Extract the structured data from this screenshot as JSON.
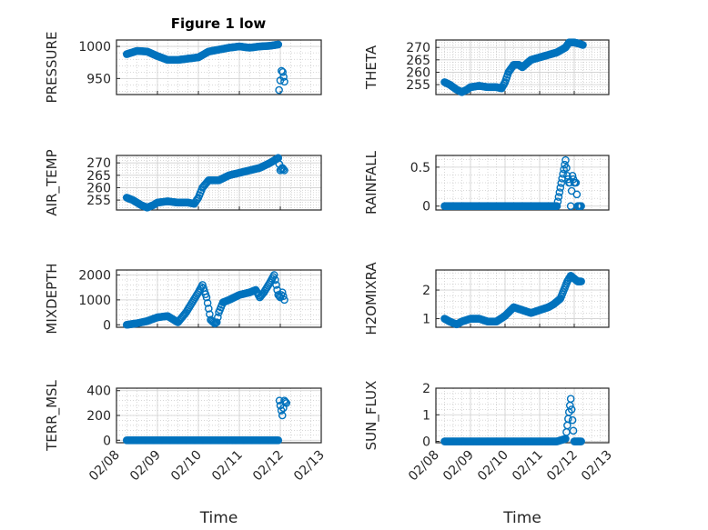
{
  "figure": {
    "title": "Figure 1 low",
    "background": "#ffffff"
  },
  "colors": {
    "marker": "#0072bd",
    "axis": "#262626",
    "grid": "#b0b0b0"
  },
  "chart_data": [
    {
      "type": "scatter",
      "ylabel": "PRESSURE",
      "ylim": [
        925,
        1010
      ],
      "yticks": [
        "950",
        "1000"
      ],
      "ytick_values": [
        950,
        1000
      ],
      "x_domain": [
        "02/08",
        "02/13"
      ],
      "grid": true,
      "marker": "circle-open",
      "series": [
        {
          "x": [
            0.25,
            0.5,
            0.75,
            1.0,
            1.25,
            1.5,
            1.75,
            2.0,
            2.25,
            2.5,
            2.75,
            3.0,
            3.25,
            3.5,
            3.75,
            3.95,
            3.97,
            4.03,
            4.06,
            4.1
          ],
          "y": [
            988,
            993,
            992,
            985,
            979,
            979,
            981,
            983,
            992,
            995,
            998,
            1000,
            998,
            1000,
            1001,
            1003,
            932,
            962,
            960,
            945
          ]
        }
      ]
    },
    {
      "type": "scatter",
      "ylabel": "THETA",
      "ylim": [
        251,
        273
      ],
      "yticks": [
        "255",
        "260",
        "265",
        "270"
      ],
      "ytick_values": [
        255,
        260,
        265,
        270
      ],
      "x_domain": [
        "02/08",
        "02/13"
      ],
      "grid": true,
      "marker": "circle-open",
      "series": [
        {
          "x": [
            0.25,
            0.4,
            0.6,
            0.75,
            0.9,
            1.0,
            1.25,
            1.5,
            1.75,
            1.9,
            2.0,
            2.1,
            2.25,
            2.4,
            2.5,
            2.75,
            3.0,
            3.25,
            3.5,
            3.75,
            3.85,
            4.0,
            4.15,
            4.25
          ],
          "y": [
            256,
            255,
            253,
            252,
            253,
            254,
            254.5,
            254,
            254,
            253.5,
            256,
            260,
            263,
            263,
            262,
            265,
            266,
            267,
            268,
            270,
            272,
            272,
            271.5,
            271
          ]
        }
      ]
    },
    {
      "type": "scatter",
      "ylabel": "AIR_TEMP",
      "ylim": [
        251,
        273
      ],
      "yticks": [
        "255",
        "260",
        "265",
        "270"
      ],
      "ytick_values": [
        255,
        260,
        265,
        270
      ],
      "x_domain": [
        "02/08",
        "02/13"
      ],
      "grid": true,
      "marker": "circle-open",
      "series": [
        {
          "x": [
            0.25,
            0.4,
            0.6,
            0.75,
            0.9,
            1.0,
            1.25,
            1.5,
            1.75,
            1.9,
            2.0,
            2.1,
            2.25,
            2.4,
            2.5,
            2.75,
            3.0,
            3.25,
            3.5,
            3.75,
            3.85,
            3.95,
            4.0,
            4.05,
            4.1
          ],
          "y": [
            256,
            255,
            253,
            252,
            253,
            254,
            254.5,
            254,
            254,
            253.5,
            256,
            260,
            263,
            263,
            263,
            265,
            266,
            267,
            268,
            270,
            271,
            272,
            267,
            268,
            267
          ]
        }
      ]
    },
    {
      "type": "scatter",
      "ylabel": "RAINFALL",
      "ylim": [
        -0.05,
        0.65
      ],
      "yticks": [
        "0",
        "0.5"
      ],
      "ytick_values": [
        0,
        0.5
      ],
      "x_domain": [
        "02/08",
        "02/13"
      ],
      "grid": true,
      "marker": "circle-open",
      "series": [
        {
          "x": [
            0.25,
            0.5,
            0.75,
            1.0,
            1.25,
            1.5,
            1.75,
            2.0,
            2.25,
            2.5,
            2.75,
            3.0,
            3.25,
            3.5,
            3.75,
            3.8,
            3.85,
            3.87,
            3.9,
            3.95,
            4.0,
            4.05,
            4.1,
            4.2
          ],
          "y": [
            0,
            0,
            0,
            0,
            0,
            0,
            0,
            0,
            0,
            0,
            0,
            0,
            0,
            0,
            0.59,
            0.39,
            0.3,
            0.3,
            0,
            0.39,
            0.3,
            0.3,
            0,
            0
          ]
        }
      ]
    },
    {
      "type": "scatter",
      "ylabel": "MIXDEPTH",
      "ylim": [
        -100,
        2200
      ],
      "yticks": [
        "0",
        "1000",
        "2000"
      ],
      "ytick_values": [
        0,
        1000,
        2000
      ],
      "x_domain": [
        "02/08",
        "02/13"
      ],
      "grid": true,
      "marker": "circle-open",
      "series": [
        {
          "x": [
            0.25,
            0.5,
            0.75,
            1.0,
            1.25,
            1.5,
            1.7,
            1.85,
            2.0,
            2.1,
            2.2,
            2.3,
            2.4,
            2.45,
            2.5,
            2.6,
            2.75,
            3.0,
            3.25,
            3.4,
            3.5,
            3.6,
            3.75,
            3.85,
            3.95,
            4.0,
            4.05,
            4.1
          ],
          "y": [
            0,
            60,
            150,
            300,
            350,
            100,
            500,
            900,
            1300,
            1600,
            1100,
            200,
            50,
            100,
            500,
            900,
            1000,
            1200,
            1300,
            1400,
            1100,
            1300,
            1700,
            2000,
            1200,
            1100,
            1300,
            1000
          ]
        }
      ]
    },
    {
      "type": "scatter",
      "ylabel": "H2OMIXRA",
      "ylim": [
        0.7,
        2.7
      ],
      "yticks": [
        "1",
        "2"
      ],
      "ytick_values": [
        1,
        2
      ],
      "x_domain": [
        "02/08",
        "02/13"
      ],
      "grid": true,
      "marker": "circle-open",
      "series": [
        {
          "x": [
            0.25,
            0.4,
            0.6,
            0.75,
            1.0,
            1.25,
            1.5,
            1.75,
            2.0,
            2.25,
            2.5,
            2.75,
            3.0,
            3.25,
            3.4,
            3.5,
            3.6,
            3.7,
            3.8,
            3.9,
            4.0,
            4.1,
            4.2
          ],
          "y": [
            1.0,
            0.9,
            0.8,
            0.9,
            1.0,
            1.0,
            0.9,
            0.9,
            1.1,
            1.4,
            1.3,
            1.2,
            1.3,
            1.4,
            1.5,
            1.6,
            1.7,
            2.0,
            2.3,
            2.5,
            2.4,
            2.3,
            2.3
          ]
        }
      ]
    },
    {
      "type": "scatter",
      "ylabel": "TERR_MSL",
      "ylim": [
        -20,
        420
      ],
      "yticks": [
        "0",
        "200",
        "400"
      ],
      "ytick_values": [
        0,
        200,
        400
      ],
      "x_domain": [
        "02/08",
        "02/13"
      ],
      "grid": true,
      "marker": "circle-open",
      "series": [
        {
          "x": [
            0.25,
            0.5,
            0.75,
            1.0,
            1.25,
            1.5,
            1.75,
            2.0,
            2.25,
            2.5,
            2.75,
            3.0,
            3.25,
            3.5,
            3.75,
            3.95,
            3.98,
            4.0,
            4.05,
            4.1,
            4.15
          ],
          "y": [
            0,
            0,
            0,
            0,
            0,
            0,
            0,
            0,
            0,
            0,
            0,
            0,
            0,
            0,
            0,
            0,
            320,
            280,
            200,
            320,
            300
          ]
        }
      ]
    },
    {
      "type": "scatter",
      "ylabel": "SUN_FLUX",
      "ylim": [
        -0.05,
        2.0
      ],
      "yticks": [
        "0",
        "1",
        "2"
      ],
      "ytick_values": [
        0,
        1,
        2
      ],
      "x_domain": [
        "02/08",
        "02/13"
      ],
      "grid": true,
      "marker": "circle-open",
      "series": [
        {
          "x": [
            0.25,
            0.5,
            0.75,
            1.0,
            1.25,
            1.5,
            1.75,
            2.0,
            2.25,
            2.5,
            2.75,
            3.0,
            3.25,
            3.5,
            3.75,
            3.9,
            4.0,
            4.1,
            4.2
          ],
          "y": [
            0,
            0,
            0,
            0,
            0,
            0,
            0,
            0,
            0,
            0,
            0,
            0,
            0,
            0,
            0.1,
            1.6,
            0,
            0,
            0
          ]
        }
      ]
    }
  ],
  "x_axis": {
    "label": "Time",
    "ticks": [
      "02/08",
      "02/09",
      "02/10",
      "02/11",
      "02/12",
      "02/13"
    ]
  }
}
